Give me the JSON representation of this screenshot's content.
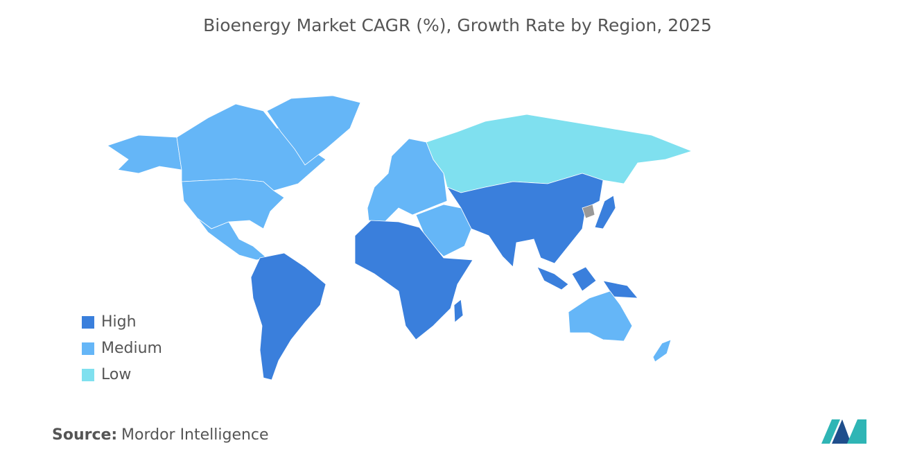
{
  "title": "Bioenergy Market CAGR (%), Growth Rate by Region, 2025",
  "legend": [
    {
      "label": "High",
      "color": "#3a7fdc"
    },
    {
      "label": "Medium",
      "color": "#65b6f7"
    },
    {
      "label": "Low",
      "color": "#7fe0ef"
    }
  ],
  "source": {
    "label": "Source:",
    "text": "Mordor Intelligence"
  }
}
